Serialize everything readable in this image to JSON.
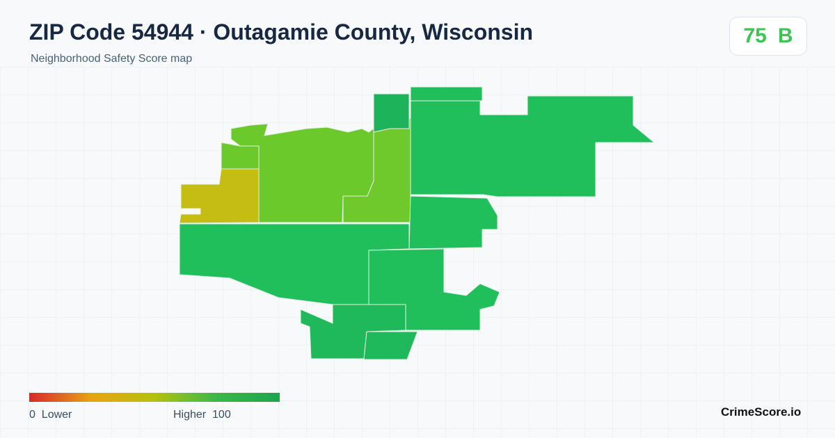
{
  "header": {
    "title": "ZIP Code 54944 · Outagamie County, Wisconsin",
    "subtitle": "Neighborhood Safety Score map"
  },
  "badge": {
    "score": "75",
    "grade": "B"
  },
  "legend": {
    "min": "0",
    "min_label": "Lower",
    "max_label": "Higher",
    "max": "100"
  },
  "footer": {
    "brand": "CrimeScore.io"
  }
}
